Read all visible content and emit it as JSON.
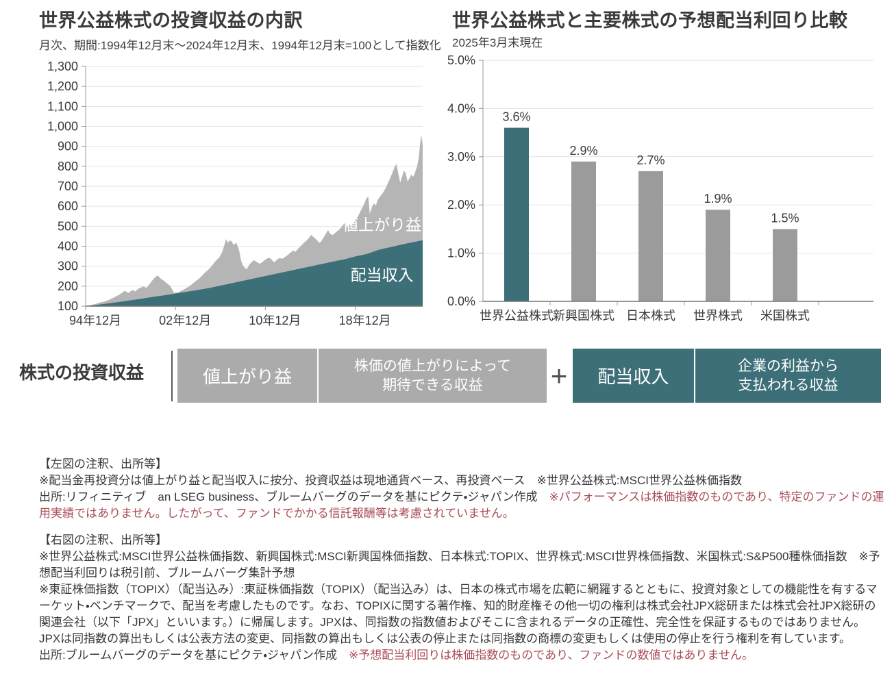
{
  "colors": {
    "teal": "#3d6f78",
    "area_gray": "#b5b5b5",
    "bar_gray": "#9b9b9b",
    "box_gray": "#ababab",
    "grid": "#e2e2e2",
    "axis": "#9a9a9a",
    "baseline": "#767676",
    "text_dark": "#3a3a3a",
    "red": "#ab4e57",
    "white": "#ffffff"
  },
  "left_chart": {
    "title": "世界公益株式の投資収益の内訳",
    "subtitle": "月次、期間:1994年12月末～2024年12月末、1994年12月末=100として指数化"
  },
  "right_chart": {
    "title": "世界公益株式と主要株式の予想配当利回り比較",
    "subtitle": "2025年3月末現在"
  },
  "chart_data": [
    {
      "type": "area",
      "title": "世界公益株式の投資収益の内訳",
      "subtitle": "月次、期間:1994年12月末～2024年12月末、1994年12月末=100として指数化",
      "x_range": [
        1994.92,
        2024.92
      ],
      "ylim": [
        100,
        1300
      ],
      "grid": true,
      "y_ticks": [
        100,
        200,
        300,
        400,
        500,
        600,
        700,
        800,
        900,
        1000,
        1100,
        1200,
        1300
      ],
      "y_tick_labels": [
        "100",
        "200",
        "300",
        "400",
        "500",
        "600",
        "700",
        "800",
        "900",
        "1,000",
        "1,100",
        "1,200",
        "1,300"
      ],
      "x_ticks": [
        {
          "t": 1994.92,
          "label": "94年12月"
        },
        {
          "t": 2002.92,
          "label": "02年12月"
        },
        {
          "t": 2010.92,
          "label": "10年12月"
        },
        {
          "t": 2018.92,
          "label": "18年12月"
        }
      ],
      "series": [
        {
          "name": "値上がり益",
          "role": "total",
          "color": "#b5b5b5",
          "label_pos": {
            "t": 2021.3,
            "v": 480
          },
          "anchors": [
            [
              1994.92,
              100
            ],
            [
              1995.17,
              103
            ],
            [
              1995.42,
              107
            ],
            [
              1995.67,
              109
            ],
            [
              1995.92,
              113
            ],
            [
              1996.17,
              118
            ],
            [
              1996.42,
              121
            ],
            [
              1996.67,
              124
            ],
            [
              1996.92,
              129
            ],
            [
              1997.17,
              136
            ],
            [
              1997.42,
              143
            ],
            [
              1997.67,
              151
            ],
            [
              1997.92,
              157
            ],
            [
              1998.17,
              168
            ],
            [
              1998.42,
              177
            ],
            [
              1998.58,
              171
            ],
            [
              1998.75,
              166
            ],
            [
              1998.92,
              175
            ],
            [
              1999.17,
              181
            ],
            [
              1999.33,
              173
            ],
            [
              1999.58,
              186
            ],
            [
              1999.83,
              193
            ],
            [
              2000.08,
              199
            ],
            [
              2000.33,
              191
            ],
            [
              2000.58,
              208
            ],
            [
              2000.83,
              227
            ],
            [
              2001.08,
              243
            ],
            [
              2001.33,
              254
            ],
            [
              2001.5,
              244
            ],
            [
              2001.67,
              235
            ],
            [
              2001.92,
              226
            ],
            [
              2002.17,
              213
            ],
            [
              2002.42,
              203
            ],
            [
              2002.67,
              179
            ],
            [
              2002.83,
              164
            ],
            [
              2002.92,
              170
            ],
            [
              2003.08,
              166
            ],
            [
              2003.33,
              174
            ],
            [
              2003.58,
              181
            ],
            [
              2003.83,
              189
            ],
            [
              2004.08,
              197
            ],
            [
              2004.33,
              207
            ],
            [
              2004.58,
              219
            ],
            [
              2004.83,
              230
            ],
            [
              2005.08,
              241
            ],
            [
              2005.33,
              255
            ],
            [
              2005.58,
              270
            ],
            [
              2005.83,
              282
            ],
            [
              2006.08,
              296
            ],
            [
              2006.33,
              315
            ],
            [
              2006.58,
              331
            ],
            [
              2006.83,
              345
            ],
            [
              2007.08,
              372
            ],
            [
              2007.25,
              402
            ],
            [
              2007.42,
              436
            ],
            [
              2007.58,
              417
            ],
            [
              2007.75,
              429
            ],
            [
              2007.92,
              424
            ],
            [
              2008.08,
              407
            ],
            [
              2008.33,
              417
            ],
            [
              2008.58,
              381
            ],
            [
              2008.75,
              330
            ],
            [
              2008.92,
              303
            ],
            [
              2009.08,
              292
            ],
            [
              2009.25,
              284
            ],
            [
              2009.5,
              309
            ],
            [
              2009.75,
              323
            ],
            [
              2009.92,
              330
            ],
            [
              2010.17,
              320
            ],
            [
              2010.42,
              312
            ],
            [
              2010.67,
              321
            ],
            [
              2010.92,
              333
            ],
            [
              2011.17,
              342
            ],
            [
              2011.42,
              338
            ],
            [
              2011.67,
              319
            ],
            [
              2011.92,
              331
            ],
            [
              2012.17,
              341
            ],
            [
              2012.42,
              337
            ],
            [
              2012.67,
              346
            ],
            [
              2012.92,
              356
            ],
            [
              2013.17,
              369
            ],
            [
              2013.42,
              379
            ],
            [
              2013.58,
              371
            ],
            [
              2013.83,
              387
            ],
            [
              2014.08,
              401
            ],
            [
              2014.33,
              416
            ],
            [
              2014.58,
              428
            ],
            [
              2014.83,
              444
            ],
            [
              2015.0,
              457
            ],
            [
              2015.25,
              444
            ],
            [
              2015.5,
              431
            ],
            [
              2015.75,
              416
            ],
            [
              2015.92,
              427
            ],
            [
              2016.17,
              450
            ],
            [
              2016.5,
              481
            ],
            [
              2016.67,
              463
            ],
            [
              2016.92,
              456
            ],
            [
              2017.17,
              469
            ],
            [
              2017.42,
              480
            ],
            [
              2017.67,
              494
            ],
            [
              2017.92,
              514
            ],
            [
              2018.08,
              524
            ],
            [
              2018.17,
              494
            ],
            [
              2018.42,
              509
            ],
            [
              2018.58,
              503
            ],
            [
              2018.83,
              521
            ],
            [
              2018.92,
              531
            ],
            [
              2019.17,
              551
            ],
            [
              2019.42,
              579
            ],
            [
              2019.67,
              607
            ],
            [
              2019.92,
              641
            ],
            [
              2020.08,
              648
            ],
            [
              2020.21,
              563
            ],
            [
              2020.42,
              597
            ],
            [
              2020.58,
              615
            ],
            [
              2020.75,
              603
            ],
            [
              2020.92,
              632
            ],
            [
              2021.17,
              652
            ],
            [
              2021.42,
              670
            ],
            [
              2021.67,
              697
            ],
            [
              2021.92,
              727
            ],
            [
              2022.17,
              760
            ],
            [
              2022.42,
              797
            ],
            [
              2022.58,
              812
            ],
            [
              2022.75,
              764
            ],
            [
              2022.92,
              719
            ],
            [
              2023.08,
              747
            ],
            [
              2023.25,
              779
            ],
            [
              2023.42,
              764
            ],
            [
              2023.58,
              723
            ],
            [
              2023.75,
              741
            ],
            [
              2023.92,
              759
            ],
            [
              2024.08,
              747
            ],
            [
              2024.25,
              771
            ],
            [
              2024.42,
              799
            ],
            [
              2024.58,
              846
            ],
            [
              2024.7,
              918
            ],
            [
              2024.8,
              957
            ],
            [
              2024.92,
              906
            ]
          ]
        },
        {
          "name": "配当収入",
          "role": "lower",
          "color": "#3d6f78",
          "label_pos": {
            "t": 2021.3,
            "v": 228
          },
          "anchors": [
            [
              1994.92,
              100
            ],
            [
              1996,
              107
            ],
            [
              1997,
              114
            ],
            [
              1998,
              122
            ],
            [
              1999,
              130
            ],
            [
              2000,
              138
            ],
            [
              2001,
              147
            ],
            [
              2002,
              155
            ],
            [
              2003,
              164
            ],
            [
              2004,
              173
            ],
            [
              2005,
              182
            ],
            [
              2006,
              192
            ],
            [
              2007,
              204
            ],
            [
              2008,
              216
            ],
            [
              2009,
              228
            ],
            [
              2010,
              240
            ],
            [
              2011,
              252
            ],
            [
              2012,
              264
            ],
            [
              2013,
              276
            ],
            [
              2014,
              288
            ],
            [
              2015,
              300
            ],
            [
              2016,
              312
            ],
            [
              2017,
              324
            ],
            [
              2018,
              335
            ],
            [
              2019,
              350
            ],
            [
              2020,
              362
            ],
            [
              2021,
              382
            ],
            [
              2022,
              395
            ],
            [
              2023,
              408
            ],
            [
              2024,
              420
            ],
            [
              2024.92,
              430
            ]
          ]
        }
      ]
    },
    {
      "type": "bar",
      "title": "世界公益株式と主要株式の予想配当利回り比較",
      "subtitle": "2025年3月末現在",
      "categories": [
        "世界公益株式",
        "新興国株式",
        "日本株式",
        "世界株式",
        "米国株式"
      ],
      "values": [
        3.6,
        2.9,
        2.7,
        1.9,
        1.5
      ],
      "value_labels": [
        "3.6%",
        "2.9%",
        "2.7%",
        "1.9%",
        "1.5%"
      ],
      "bar_colors": [
        "#3d6f78",
        "#9b9b9b",
        "#9b9b9b",
        "#9b9b9b",
        "#9b9b9b"
      ],
      "ylim": [
        0,
        5
      ],
      "grid": true,
      "y_ticks": [
        0,
        1,
        2,
        3,
        4,
        5
      ],
      "y_tick_labels": [
        "0.0%",
        "1.0%",
        "2.0%",
        "3.0%",
        "4.0%",
        "5.0%"
      ]
    }
  ],
  "equation": {
    "label": "株式の投資収益",
    "gain_term": "値上がり益",
    "gain_desc_line1": "株価の値上がりによって",
    "gain_desc_line2": "期待できる収益",
    "plus": "+",
    "dividend_term": "配当収入",
    "dividend_desc_line1": "企業の利益から",
    "dividend_desc_line2": "支払われる収益"
  },
  "footnotes": {
    "left": {
      "heading": "【左図の注釈、出所等】",
      "note1": "※配当金再投資分は値上がり益と配当収入に按分、投資収益は現地通貨ベース、再投資ベース　※世界公益株式:MSCI世界公益株価指数",
      "source_black": "出所:リフィニティブ　an LSEG business、ブルームバーグのデータを基にピクテ・ジャパン作成　",
      "source_red": "※パフォーマンスは株価指数のものであり、特定のファンドの運用実績ではありません。したがって、ファンドでかかる信託報酬等は考慮されていません。"
    },
    "right": {
      "heading": "【右図の注釈、出所等】",
      "note1": "※世界公益株式:MSCI世界公益株価指数、新興国株式:MSCI新興国株価指数、日本株式:TOPIX、世界株式:MSCI世界株価指数、米国株式:S&P500種株価指数　※予想配当利回りは税引前、ブルームバーグ集計予想",
      "note2": "※東証株価指数（TOPIX）（配当込み）:東証株価指数（TOPIX）（配当込み）は、日本の株式市場を広範に網羅するとともに、投資対象としての機能性を有するマーケット・ベンチマークで、配当を考慮したものです。なお、TOPIXに関する著作権、知的財産権その他一切の権利は株式会社JPX総研または株式会社JPX総研の関連会社（以下「JPX」といいます。）に帰属します。JPXは、同指数の指数値およびそこに含まれるデータの正確性、完全性を保証するものではありません。JPXは同指数の算出もしくは公表方法の変更、同指数の算出もしくは公表の停止または同指数の商標の変更もしくは使用の停止を行う権利を有しています。",
      "source_black": "出所:ブルームバーグのデータを基にピクテ・ジャパン作成　",
      "source_red": "※予想配当利回りは株価指数のものであり、ファンドの数値ではありません。"
    }
  }
}
